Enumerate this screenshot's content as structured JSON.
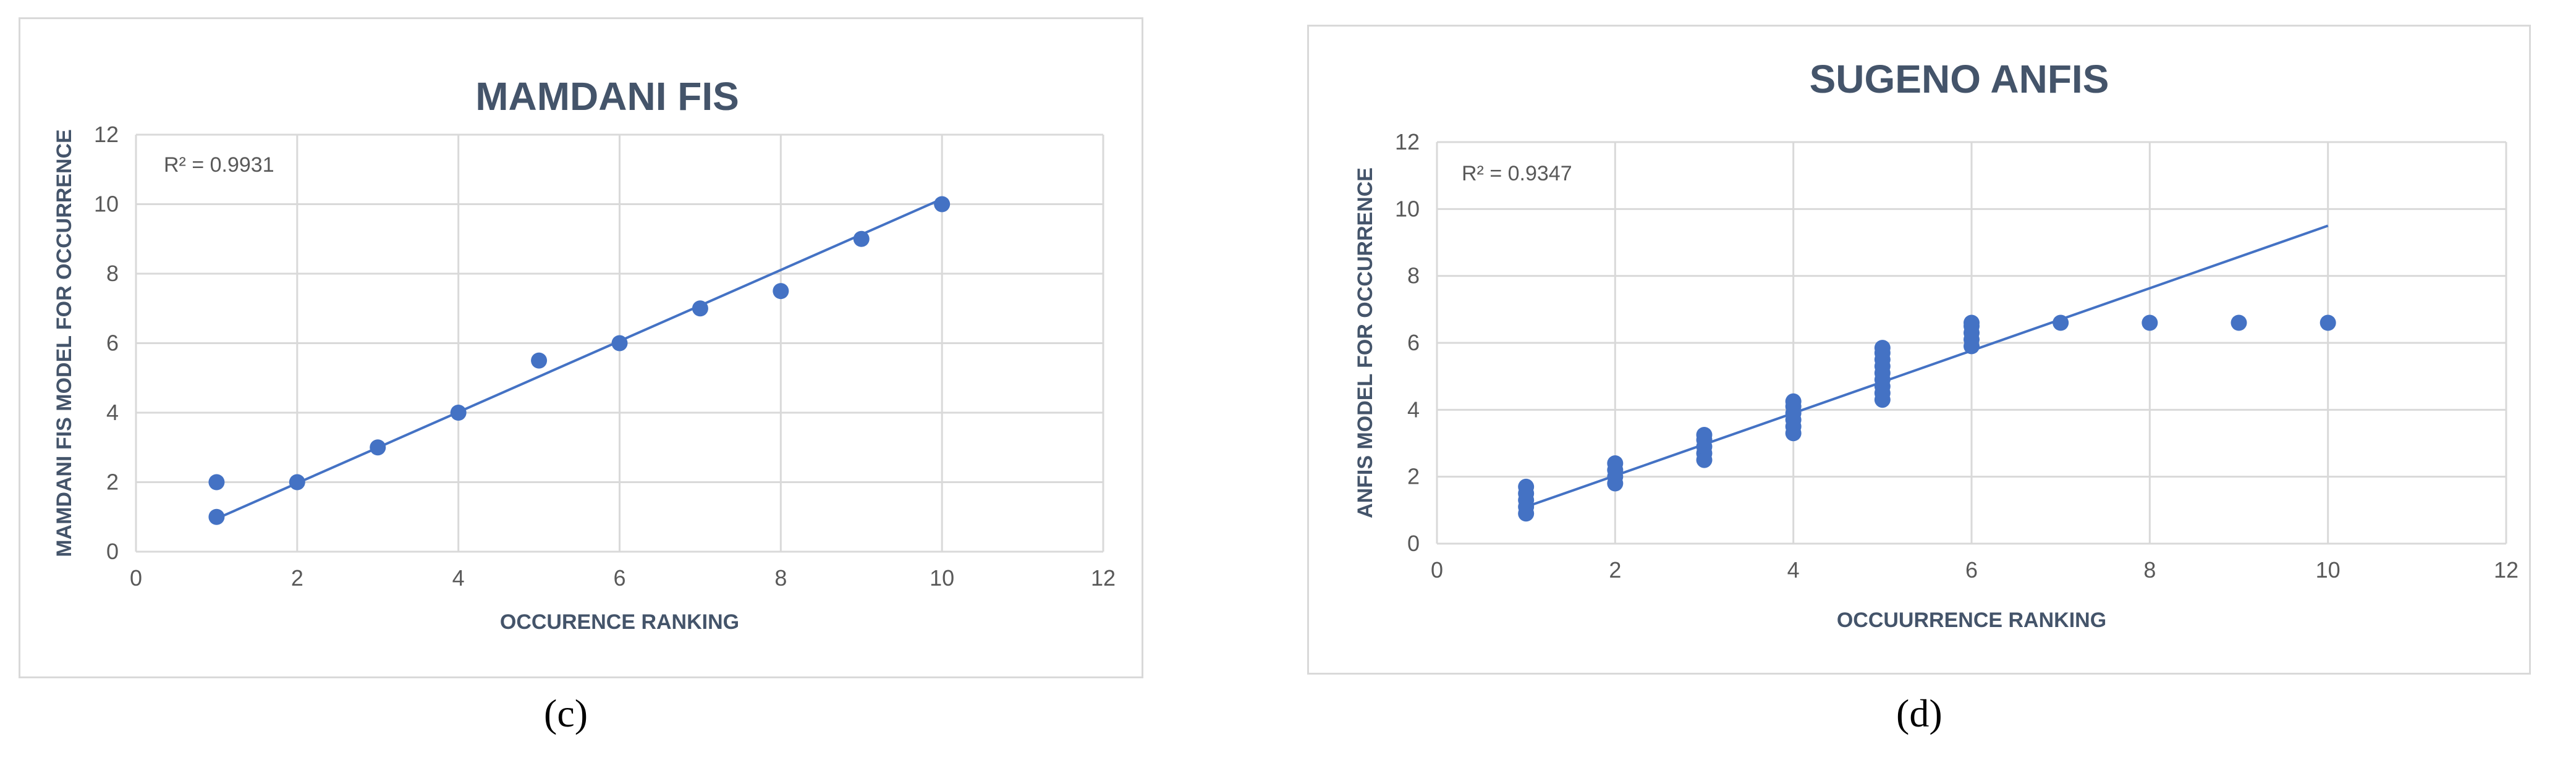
{
  "chart_data": [
    {
      "type": "scatter",
      "panel": "c",
      "caption": "(c)",
      "title": "MAMDANI FIS",
      "xlabel": "OCCURENCE RANKING",
      "ylabel": "MAMDANI FIS MODEL FOR OCCURRENCE",
      "xlim": [
        0,
        12
      ],
      "ylim": [
        0,
        12
      ],
      "xticks": [
        "0",
        "2",
        "4",
        "6",
        "8",
        "10",
        "12"
      ],
      "yticks": [
        "0",
        "2",
        "4",
        "6",
        "8",
        "10",
        "12"
      ],
      "grid": true,
      "r2_label": "R² = 0.9931",
      "color": "#4472c4",
      "series": [
        {
          "points": [
            [
              1,
              1
            ],
            [
              1,
              2
            ],
            [
              2,
              2
            ],
            [
              3,
              3
            ],
            [
              4,
              4
            ],
            [
              5,
              5.5
            ],
            [
              6,
              6
            ],
            [
              7,
              7
            ],
            [
              8,
              7.5
            ],
            [
              9,
              9
            ],
            [
              10,
              10
            ]
          ]
        }
      ],
      "trendline": {
        "x": [
          1,
          10
        ],
        "y": [
          0.95,
          10.15
        ]
      }
    },
    {
      "type": "scatter",
      "panel": "d",
      "caption": "(d)",
      "title": "SUGENO ANFIS",
      "xlabel": "OCCUURRENCE RANKING",
      "ylabel": "ANFIS MODEL FOR OCCURRENCE",
      "xlim": [
        0,
        12
      ],
      "ylim": [
        0,
        12
      ],
      "xticks": [
        "0",
        "2",
        "4",
        "6",
        "8",
        "10",
        "12"
      ],
      "yticks": [
        "0",
        "2",
        "4",
        "6",
        "8",
        "10",
        "12"
      ],
      "grid": true,
      "r2_label": "R² = 0.9347",
      "color": "#4472c4",
      "series": [
        {
          "points": [
            [
              1,
              0.9
            ],
            [
              1,
              1.1
            ],
            [
              1,
              1.3
            ],
            [
              1,
              1.5
            ],
            [
              1,
              1.7
            ],
            [
              2,
              1.8
            ],
            [
              2,
              2.0
            ],
            [
              2,
              2.2
            ],
            [
              2,
              2.4
            ],
            [
              3,
              2.5
            ],
            [
              3,
              2.7
            ],
            [
              3,
              2.9
            ],
            [
              3,
              3.1
            ],
            [
              3,
              3.25
            ],
            [
              4,
              3.3
            ],
            [
              4,
              3.5
            ],
            [
              4,
              3.7
            ],
            [
              4,
              3.9
            ],
            [
              4,
              4.1
            ],
            [
              4,
              4.25
            ],
            [
              5,
              4.3
            ],
            [
              5,
              4.5
            ],
            [
              5,
              4.7
            ],
            [
              5,
              4.9
            ],
            [
              5,
              5.1
            ],
            [
              5,
              5.3
            ],
            [
              5,
              5.5
            ],
            [
              5,
              5.7
            ],
            [
              5,
              5.85
            ],
            [
              6,
              5.9
            ],
            [
              6,
              6.1
            ],
            [
              6,
              6.3
            ],
            [
              6,
              6.5
            ],
            [
              6,
              6.6
            ],
            [
              7,
              6.6
            ],
            [
              8,
              6.6
            ],
            [
              9,
              6.6
            ],
            [
              10,
              6.6
            ]
          ]
        }
      ],
      "trendline": {
        "x": [
          1,
          10
        ],
        "y": [
          1.1,
          9.5
        ]
      }
    }
  ]
}
